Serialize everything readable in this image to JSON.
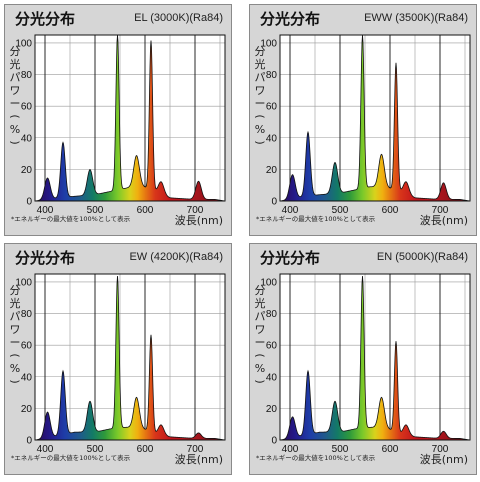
{
  "chart_data": [
    {
      "type": "area",
      "title": "分光分布",
      "subtitle": "EL (3000K)(Ra84)",
      "ylabel": "分光パワー(%)",
      "xlabel": "波長(nm)",
      "note": "*エネルギーの最大値を100%として表示",
      "xlim": [
        380,
        760
      ],
      "ylim": [
        0,
        105
      ],
      "xticks": [
        400,
        500,
        600,
        700
      ],
      "yticks": [
        0,
        20,
        40,
        60,
        80,
        100
      ],
      "grid": true,
      "peaks": [
        [
          405,
          14
        ],
        [
          436,
          36
        ],
        [
          490,
          18
        ],
        [
          545,
          102
        ],
        [
          583,
          24
        ],
        [
          612,
          98
        ],
        [
          632,
          10
        ],
        [
          707,
          12
        ]
      ],
      "baseline": [
        [
          380,
          0
        ],
        [
          400,
          1
        ],
        [
          430,
          2
        ],
        [
          460,
          3
        ],
        [
          500,
          4
        ],
        [
          530,
          6
        ],
        [
          560,
          8
        ],
        [
          590,
          10
        ],
        [
          620,
          6
        ],
        [
          650,
          2
        ],
        [
          700,
          1
        ],
        [
          740,
          1
        ],
        [
          760,
          0
        ]
      ]
    },
    {
      "type": "area",
      "title": "分光分布",
      "subtitle": "EWW (3500K)(Ra84)",
      "ylabel": "分光パワー(%)",
      "xlabel": "波長(nm)",
      "note": "*エネルギーの最大値を100%として表示",
      "xlim": [
        380,
        760
      ],
      "ylim": [
        0,
        105
      ],
      "xticks": [
        400,
        500,
        600,
        700
      ],
      "yticks": [
        0,
        20,
        40,
        60,
        80,
        100
      ],
      "grid": true,
      "peaks": [
        [
          405,
          16
        ],
        [
          436,
          42
        ],
        [
          490,
          22
        ],
        [
          545,
          101
        ],
        [
          583,
          25
        ],
        [
          612,
          84
        ],
        [
          632,
          10
        ],
        [
          707,
          11
        ]
      ],
      "baseline": [
        [
          380,
          0
        ],
        [
          400,
          1
        ],
        [
          430,
          3
        ],
        [
          460,
          4
        ],
        [
          500,
          5
        ],
        [
          530,
          7
        ],
        [
          560,
          9
        ],
        [
          590,
          9
        ],
        [
          620,
          6
        ],
        [
          650,
          2
        ],
        [
          700,
          1
        ],
        [
          740,
          1
        ],
        [
          760,
          0
        ]
      ]
    },
    {
      "type": "area",
      "title": "分光分布",
      "subtitle": "EW (4200K)(Ra84)",
      "ylabel": "分光パワー(%)",
      "xlabel": "波長(nm)",
      "note": "*エネルギーの最大値を100%として表示",
      "xlim": [
        380,
        760
      ],
      "ylim": [
        0,
        105
      ],
      "xticks": [
        400,
        500,
        600,
        700
      ],
      "yticks": [
        0,
        20,
        40,
        60,
        80,
        100
      ],
      "grid": true,
      "peaks": [
        [
          405,
          17
        ],
        [
          436,
          42
        ],
        [
          490,
          22
        ],
        [
          545,
          100
        ],
        [
          583,
          23
        ],
        [
          612,
          64
        ],
        [
          632,
          8
        ],
        [
          707,
          4
        ]
      ],
      "baseline": [
        [
          380,
          0
        ],
        [
          400,
          1
        ],
        [
          430,
          3
        ],
        [
          460,
          5
        ],
        [
          500,
          5
        ],
        [
          530,
          7
        ],
        [
          560,
          8
        ],
        [
          590,
          8
        ],
        [
          620,
          4
        ],
        [
          650,
          2
        ],
        [
          700,
          1
        ],
        [
          740,
          1
        ],
        [
          760,
          0
        ]
      ]
    },
    {
      "type": "area",
      "title": "分光分布",
      "subtitle": "EN (5000K)(Ra84)",
      "ylabel": "分光パワー(%)",
      "xlabel": "波長(nm)",
      "note": "*エネルギーの最大値を100%として表示",
      "xlim": [
        380,
        760
      ],
      "ylim": [
        0,
        105
      ],
      "xticks": [
        400,
        500,
        600,
        700
      ],
      "yticks": [
        0,
        20,
        40,
        60,
        80,
        100
      ],
      "grid": true,
      "peaks": [
        [
          405,
          14
        ],
        [
          436,
          42
        ],
        [
          490,
          22
        ],
        [
          545,
          100
        ],
        [
          583,
          23
        ],
        [
          612,
          60
        ],
        [
          632,
          8
        ],
        [
          707,
          5
        ]
      ],
      "baseline": [
        [
          380,
          0
        ],
        [
          400,
          1
        ],
        [
          430,
          3
        ],
        [
          460,
          5
        ],
        [
          500,
          5
        ],
        [
          530,
          7
        ],
        [
          560,
          8
        ],
        [
          590,
          8
        ],
        [
          620,
          4
        ],
        [
          650,
          2
        ],
        [
          700,
          1
        ],
        [
          740,
          1
        ],
        [
          760,
          0
        ]
      ]
    }
  ]
}
